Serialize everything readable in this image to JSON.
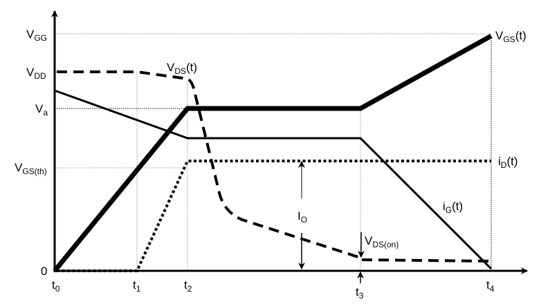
{
  "diagram": {
    "y_labels": {
      "vgg": {
        "main": "V",
        "sub": "GG"
      },
      "vdd": {
        "main": "V",
        "sub": "DD"
      },
      "va": {
        "main": "V",
        "sub": "a"
      },
      "vgsth": {
        "main": "V",
        "sub": "GS(th)"
      },
      "zero": "0"
    },
    "x_labels": [
      {
        "main": "t",
        "sub": "0"
      },
      {
        "main": "t",
        "sub": "1"
      },
      {
        "main": "t",
        "sub": "2"
      },
      {
        "main": "t",
        "sub": "3"
      },
      {
        "main": "t",
        "sub": "4"
      }
    ],
    "curve_labels": {
      "vgs": {
        "main": "V",
        "sub": "GS",
        "tail": "(t)"
      },
      "vds": {
        "main": "V",
        "sub": "DS",
        "tail": "(t)"
      },
      "id": {
        "main": "i",
        "sub": "D",
        "tail": "(t)"
      },
      "ig": {
        "main": "i",
        "sub": "G",
        "tail": "(t)"
      },
      "io": {
        "main": "I",
        "sub": "O"
      },
      "vdson": {
        "main": "V",
        "sub": "DS(on)"
      }
    },
    "colors": {
      "line": "#000000",
      "grid": "#999999"
    }
  }
}
